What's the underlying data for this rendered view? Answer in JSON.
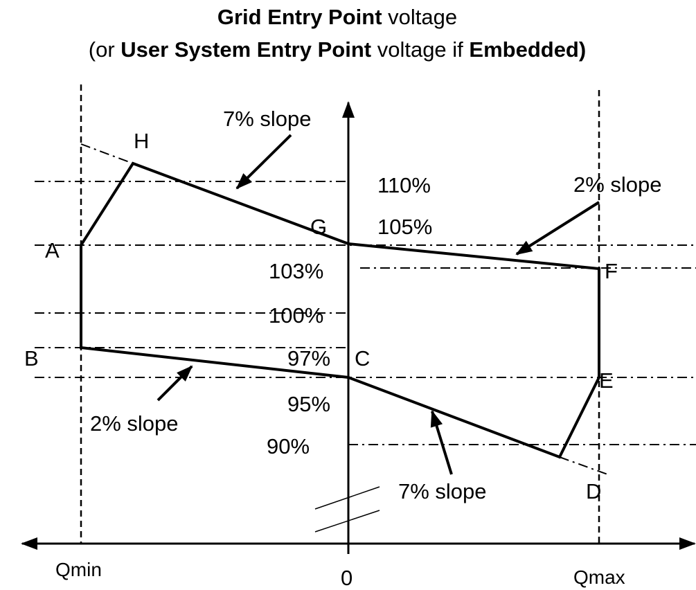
{
  "title": {
    "line1": [
      "Grid Entry Point",
      " voltage"
    ],
    "line2": [
      "(or ",
      "User System Entry Point",
      " voltage if ",
      "Embedded)"
    ]
  },
  "points": {
    "H": "H",
    "A": "A",
    "B": "B",
    "G": "G",
    "C": "C",
    "F": "F",
    "E": "E",
    "D": "D"
  },
  "levels": {
    "l110": "110%",
    "l105": "105%",
    "l103": "103%",
    "l100": "100%",
    "l97": "97%",
    "l95": "95%",
    "l90": "90%"
  },
  "slopes": {
    "top_left": "7% slope",
    "top_right": "2% slope",
    "bottom_left": "2% slope",
    "bottom_right": "7% slope"
  },
  "axis": {
    "qmin": "Qmin",
    "zero": "0",
    "qmax": "Qmax"
  }
}
